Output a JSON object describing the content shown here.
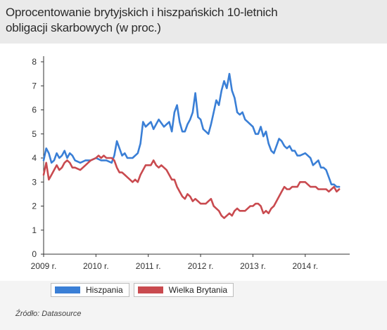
{
  "title": "Oprocentowanie brytyjskich i hiszpańskich 10-letnich obligacji skarbowych (w proc.)",
  "source": "Źródło: Datasource",
  "colors": {
    "spain": "#3a7fd6",
    "uk": "#c94a4f",
    "axis": "#333333"
  },
  "chart_data": {
    "type": "line",
    "title": "Oprocentowanie brytyjskich i hiszpańskich 10-letnich obligacji skarbowych (w proc.)",
    "xlabel": "",
    "ylabel": "",
    "x_ticks": [
      "2009 r.",
      "2010 r.",
      "2011 r.",
      "2012 r.",
      "2013 r.",
      "2014 r."
    ],
    "y_ticks": [
      "0",
      "1",
      "2",
      "3",
      "4",
      "5",
      "6",
      "7",
      "8"
    ],
    "xlim": [
      2009.0,
      2014.85
    ],
    "ylim": [
      0,
      8
    ],
    "grid": false,
    "legend": "bottom-left",
    "series": [
      {
        "name": "Hiszpania",
        "color": "#3a7fd6",
        "x": [
          2009.0,
          2009.05,
          2009.1,
          2009.15,
          2009.2,
          2009.25,
          2009.3,
          2009.35,
          2009.4,
          2009.45,
          2009.5,
          2009.55,
          2009.6,
          2009.7,
          2009.8,
          2009.9,
          2010.0,
          2010.1,
          2010.2,
          2010.3,
          2010.35,
          2010.4,
          2010.45,
          2010.5,
          2010.55,
          2010.6,
          2010.7,
          2010.8,
          2010.85,
          2010.9,
          2010.95,
          2011.0,
          2011.05,
          2011.1,
          2011.15,
          2011.2,
          2011.3,
          2011.4,
          2011.45,
          2011.5,
          2011.55,
          2011.6,
          2011.65,
          2011.7,
          2011.75,
          2011.8,
          2011.85,
          2011.9,
          2011.95,
          2012.0,
          2012.05,
          2012.1,
          2012.15,
          2012.2,
          2012.25,
          2012.3,
          2012.35,
          2012.4,
          2012.45,
          2012.5,
          2012.55,
          2012.6,
          2012.65,
          2012.7,
          2012.75,
          2012.8,
          2012.85,
          2012.9,
          2013.0,
          2013.05,
          2013.1,
          2013.15,
          2013.2,
          2013.25,
          2013.3,
          2013.35,
          2013.4,
          2013.45,
          2013.5,
          2013.55,
          2013.6,
          2013.65,
          2013.7,
          2013.75,
          2013.8,
          2013.85,
          2013.9,
          2014.0,
          2014.1,
          2014.15,
          2014.2,
          2014.25,
          2014.3,
          2014.35,
          2014.4,
          2014.45,
          2014.5,
          2014.55,
          2014.6,
          2014.65
        ],
        "values": [
          3.9,
          4.4,
          4.2,
          3.8,
          3.9,
          4.2,
          4.0,
          4.1,
          4.3,
          4.0,
          4.2,
          4.1,
          3.9,
          3.8,
          3.9,
          3.9,
          4.0,
          3.9,
          3.9,
          3.8,
          4.1,
          4.7,
          4.4,
          4.1,
          4.2,
          4.0,
          4.0,
          4.2,
          4.6,
          5.5,
          5.3,
          5.4,
          5.5,
          5.2,
          5.4,
          5.6,
          5.3,
          5.5,
          5.1,
          5.9,
          6.2,
          5.5,
          5.1,
          5.1,
          5.4,
          5.6,
          5.9,
          6.7,
          5.7,
          5.6,
          5.2,
          5.1,
          5.0,
          5.4,
          5.9,
          6.4,
          6.2,
          6.8,
          7.2,
          6.9,
          7.5,
          6.8,
          6.5,
          5.9,
          5.8,
          5.9,
          5.6,
          5.5,
          5.3,
          5.0,
          5.0,
          5.3,
          4.9,
          5.1,
          4.6,
          4.3,
          4.2,
          4.5,
          4.8,
          4.7,
          4.5,
          4.4,
          4.5,
          4.3,
          4.3,
          4.1,
          4.1,
          4.2,
          4.0,
          3.7,
          3.8,
          3.9,
          3.6,
          3.6,
          3.5,
          3.2,
          2.9,
          2.9,
          2.8,
          2.8
        ]
      },
      {
        "name": "Wielka Brytania",
        "color": "#c94a4f",
        "x": [
          2009.0,
          2009.05,
          2009.1,
          2009.15,
          2009.2,
          2009.25,
          2009.3,
          2009.35,
          2009.4,
          2009.45,
          2009.5,
          2009.55,
          2009.6,
          2009.7,
          2009.8,
          2009.9,
          2010.0,
          2010.05,
          2010.1,
          2010.15,
          2010.2,
          2010.25,
          2010.3,
          2010.35,
          2010.4,
          2010.45,
          2010.5,
          2010.55,
          2010.6,
          2010.65,
          2010.7,
          2010.75,
          2010.8,
          2010.85,
          2010.9,
          2010.95,
          2011.0,
          2011.05,
          2011.1,
          2011.15,
          2011.2,
          2011.25,
          2011.3,
          2011.35,
          2011.4,
          2011.45,
          2011.5,
          2011.55,
          2011.6,
          2011.65,
          2011.7,
          2011.75,
          2011.8,
          2011.85,
          2011.9,
          2011.95,
          2012.0,
          2012.05,
          2012.1,
          2012.15,
          2012.2,
          2012.25,
          2012.3,
          2012.35,
          2012.4,
          2012.45,
          2012.5,
          2012.55,
          2012.6,
          2012.65,
          2012.7,
          2012.75,
          2012.8,
          2012.85,
          2012.9,
          2012.95,
          2013.0,
          2013.05,
          2013.1,
          2013.15,
          2013.2,
          2013.25,
          2013.3,
          2013.35,
          2013.4,
          2013.45,
          2013.5,
          2013.55,
          2013.6,
          2013.65,
          2013.7,
          2013.75,
          2013.8,
          2013.85,
          2013.9,
          2013.95,
          2014.0,
          2014.05,
          2014.1,
          2014.15,
          2014.2,
          2014.25,
          2014.3,
          2014.35,
          2014.4,
          2014.45,
          2014.5,
          2014.55,
          2014.6,
          2014.65
        ],
        "values": [
          3.3,
          3.8,
          3.1,
          3.3,
          3.5,
          3.7,
          3.5,
          3.6,
          3.8,
          3.9,
          3.8,
          3.6,
          3.6,
          3.5,
          3.7,
          3.9,
          4.0,
          4.1,
          4.0,
          4.1,
          4.0,
          4.0,
          4.0,
          3.9,
          3.6,
          3.4,
          3.4,
          3.3,
          3.2,
          3.1,
          3.0,
          3.1,
          3.0,
          3.3,
          3.5,
          3.7,
          3.7,
          3.7,
          3.9,
          3.7,
          3.6,
          3.7,
          3.6,
          3.5,
          3.3,
          3.1,
          3.1,
          2.8,
          2.6,
          2.4,
          2.3,
          2.5,
          2.4,
          2.2,
          2.3,
          2.2,
          2.1,
          2.1,
          2.1,
          2.2,
          2.3,
          2.0,
          1.9,
          1.8,
          1.6,
          1.5,
          1.6,
          1.7,
          1.6,
          1.8,
          1.9,
          1.8,
          1.8,
          1.8,
          1.9,
          2.0,
          2.0,
          2.1,
          2.1,
          2.0,
          1.7,
          1.8,
          1.7,
          1.9,
          2.0,
          2.2,
          2.4,
          2.6,
          2.8,
          2.7,
          2.7,
          2.8,
          2.8,
          2.8,
          3.0,
          3.0,
          3.0,
          2.9,
          2.8,
          2.8,
          2.8,
          2.7,
          2.7,
          2.7,
          2.7,
          2.6,
          2.7,
          2.8,
          2.6,
          2.7
        ]
      }
    ]
  }
}
